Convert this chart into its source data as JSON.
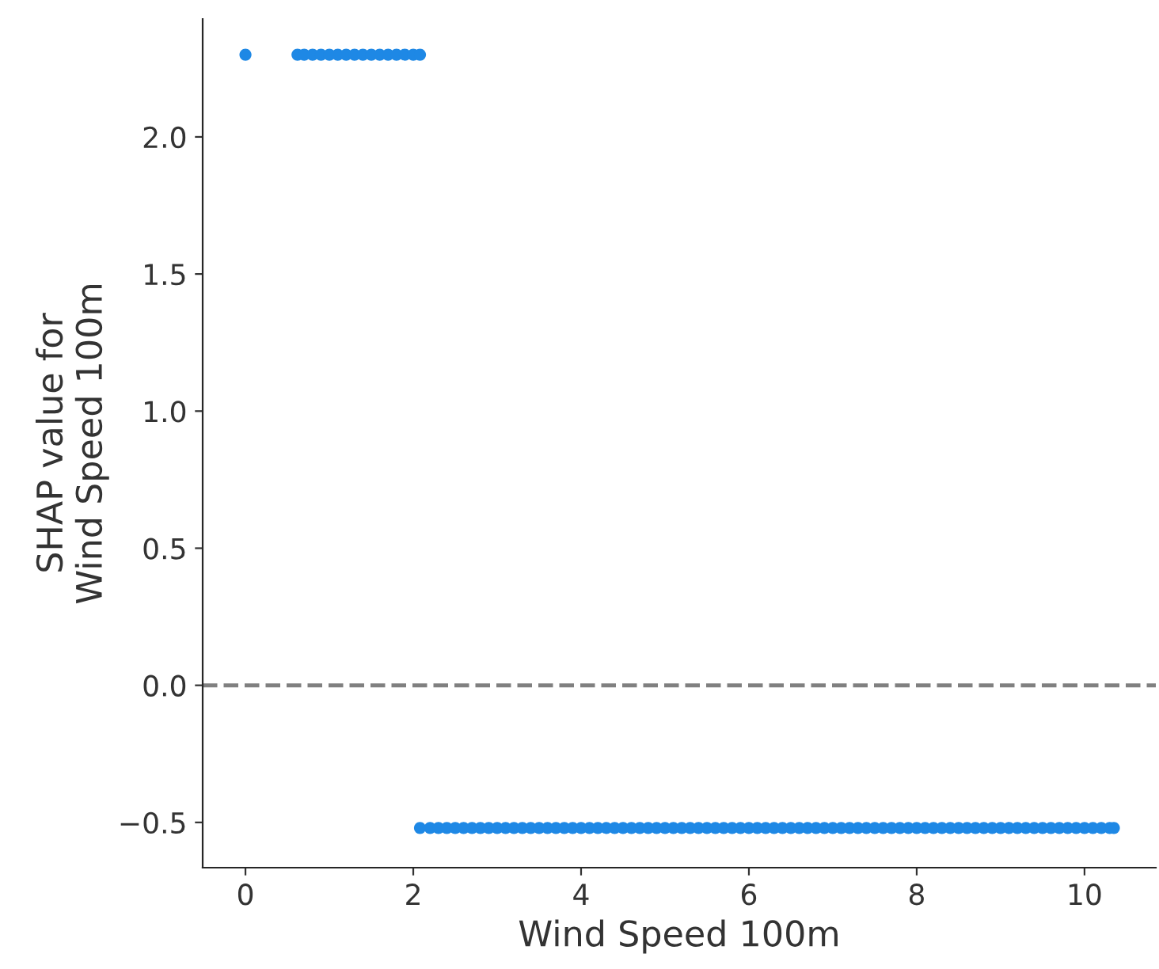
{
  "chart_data": {
    "type": "scatter",
    "xlabel": "Wind Speed 100m",
    "ylabel": "SHAP value for\nWind Speed 100m",
    "x": [
      0,
      0.62,
      0.7,
      0.8,
      0.9,
      1.0,
      1.1,
      1.2,
      1.3,
      1.4,
      1.5,
      1.6,
      1.7,
      1.8,
      1.9,
      2.0,
      2.08,
      2.08,
      2.2,
      2.3,
      2.4,
      2.5,
      2.6,
      2.7,
      2.8,
      2.9,
      3.0,
      3.1,
      3.2,
      3.3,
      3.4,
      3.5,
      3.6,
      3.7,
      3.8,
      3.9,
      4.0,
      4.1,
      4.2,
      4.3,
      4.4,
      4.5,
      4.6,
      4.7,
      4.8,
      4.9,
      5.0,
      5.1,
      5.2,
      5.3,
      5.4,
      5.5,
      5.6,
      5.7,
      5.8,
      5.9,
      6.0,
      6.1,
      6.2,
      6.3,
      6.4,
      6.5,
      6.6,
      6.7,
      6.8,
      6.9,
      7.0,
      7.1,
      7.2,
      7.3,
      7.4,
      7.5,
      7.6,
      7.7,
      7.8,
      7.9,
      8.0,
      8.1,
      8.2,
      8.3,
      8.4,
      8.5,
      8.6,
      8.7,
      8.8,
      8.9,
      9.0,
      9.1,
      9.2,
      9.3,
      9.4,
      9.5,
      9.6,
      9.7,
      9.8,
      9.9,
      10.0,
      10.1,
      10.2,
      10.3,
      10.35
    ],
    "series": [
      {
        "color": "#1e88e5",
        "values": [
          2.3,
          2.3,
          2.3,
          2.3,
          2.3,
          2.3,
          2.3,
          2.3,
          2.3,
          2.3,
          2.3,
          2.3,
          2.3,
          2.3,
          2.3,
          2.3,
          2.3,
          -0.52,
          -0.52,
          -0.52,
          -0.52,
          -0.52,
          -0.52,
          -0.52,
          -0.52,
          -0.52,
          -0.52,
          -0.52,
          -0.52,
          -0.52,
          -0.52,
          -0.52,
          -0.52,
          -0.52,
          -0.52,
          -0.52,
          -0.52,
          -0.52,
          -0.52,
          -0.52,
          -0.52,
          -0.52,
          -0.52,
          -0.52,
          -0.52,
          -0.52,
          -0.52,
          -0.52,
          -0.52,
          -0.52,
          -0.52,
          -0.52,
          -0.52,
          -0.52,
          -0.52,
          -0.52,
          -0.52,
          -0.52,
          -0.52,
          -0.52,
          -0.52,
          -0.52,
          -0.52,
          -0.52,
          -0.52,
          -0.52,
          -0.52,
          -0.52,
          -0.52,
          -0.52,
          -0.52,
          -0.52,
          -0.52,
          -0.52,
          -0.52,
          -0.52,
          -0.52,
          -0.52,
          -0.52,
          -0.52,
          -0.52,
          -0.52,
          -0.52,
          -0.52,
          -0.52,
          -0.52,
          -0.52,
          -0.52,
          -0.52,
          -0.52,
          -0.52,
          -0.52,
          -0.52,
          -0.52,
          -0.52,
          -0.52,
          -0.52,
          -0.52,
          -0.52,
          -0.52,
          -0.52
        ]
      }
    ],
    "xlim": [
      -0.51,
      10.85
    ],
    "ylim": [
      -0.665,
      2.43
    ],
    "xticks": [
      0,
      2,
      4,
      6,
      8,
      10
    ],
    "yticks": [
      {
        "value": -0.5,
        "label": "−0.5"
      },
      {
        "value": 0,
        "label": "0.0"
      },
      {
        "value": 0.5,
        "label": "0.5"
      },
      {
        "value": 1,
        "label": "1.0"
      },
      {
        "value": 1.5,
        "label": "1.5"
      },
      {
        "value": 2,
        "label": "2.0"
      }
    ],
    "ref_lines": [
      {
        "axis": "y",
        "value": 0,
        "color": "#808080",
        "line_style": "dashed"
      }
    ],
    "marker": "circle",
    "grid": false
  }
}
